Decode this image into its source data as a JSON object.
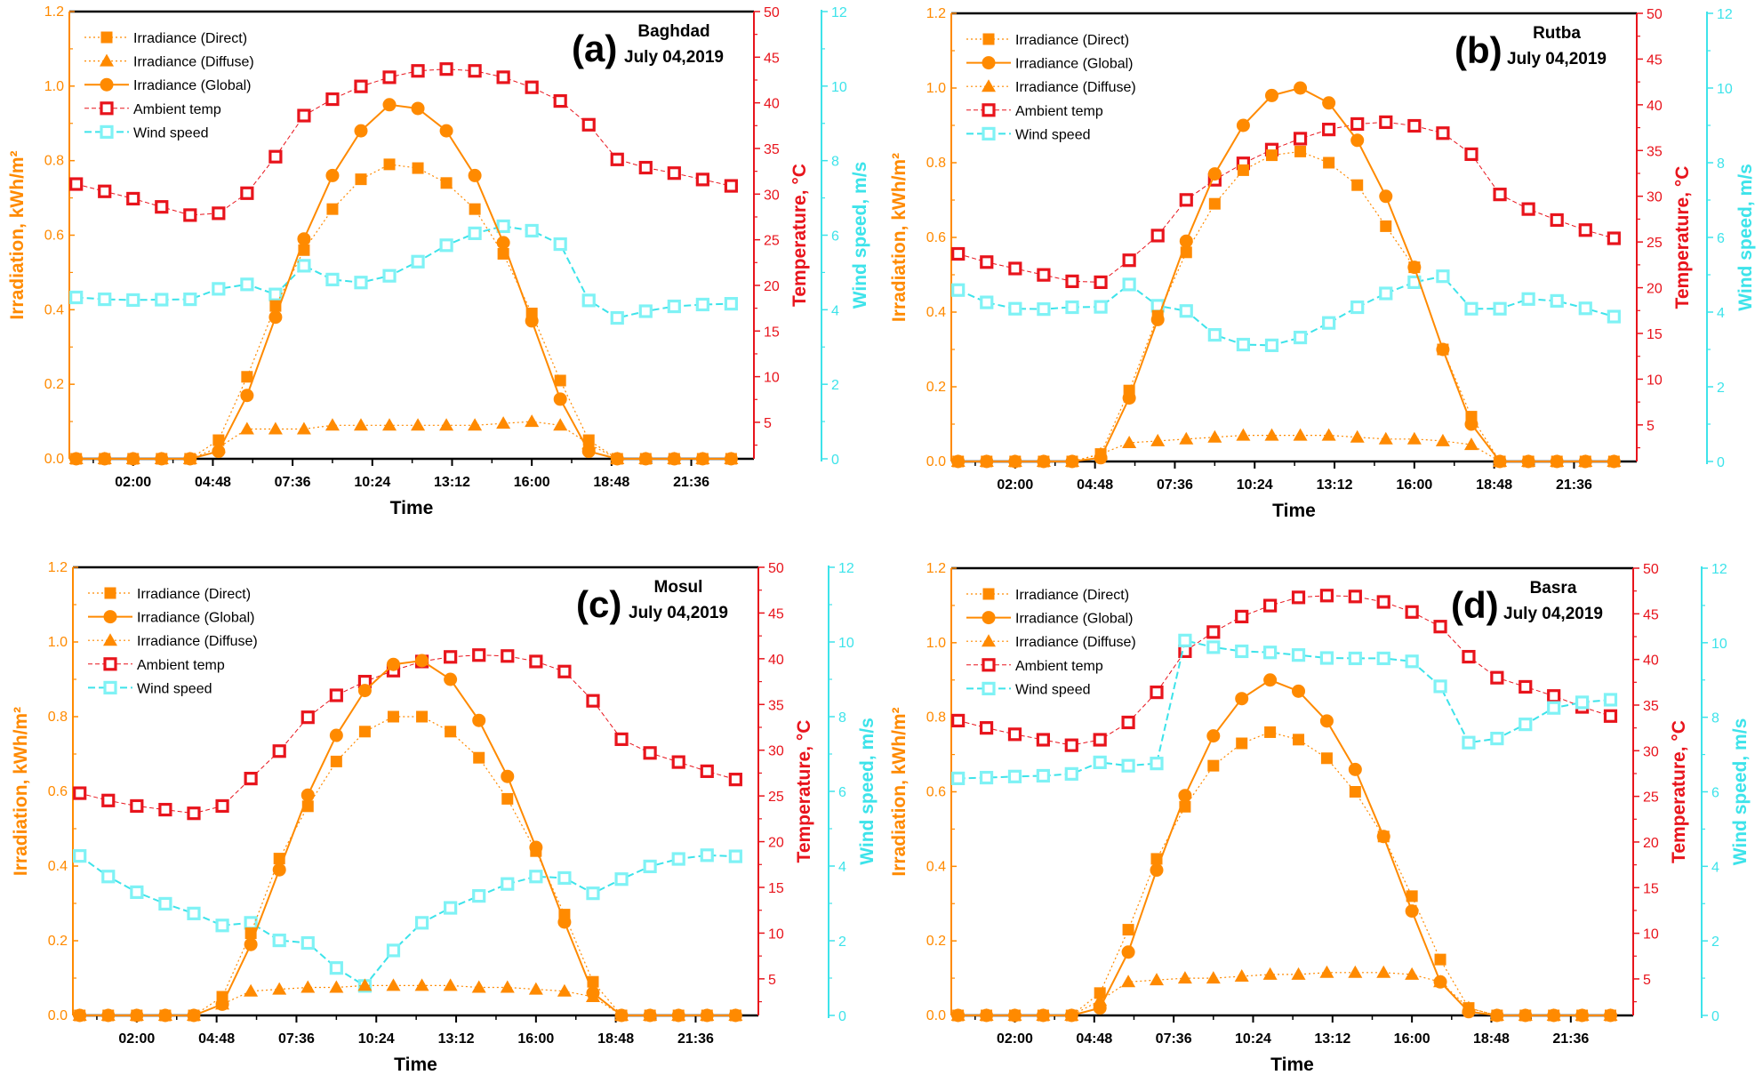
{
  "colors": {
    "irradiance": "#FF8A00",
    "temperature": "#E8141C",
    "wind": "#3DE3EA",
    "wind_marker": "#7FF2F5",
    "frame": "#000000"
  },
  "chart_data": [
    {
      "type": "line",
      "panel_label": "(a)",
      "city": "Baghdad",
      "date": "July 04,2019",
      "xlabel": "Time",
      "ylabel_left": "Irradiation, kWh/m²",
      "ylabel_right": "Temperature, °C",
      "ylabel_right2": "Wind speed, m/s",
      "x": [
        0,
        1,
        2,
        3,
        4,
        5,
        6,
        7,
        8,
        9,
        10,
        11,
        12,
        13,
        14,
        15,
        16,
        17,
        18,
        19,
        20,
        21,
        22,
        23
      ],
      "xlim": [
        -0.24,
        23.8
      ],
      "xticks": [
        {
          "value": 2,
          "label": "02:00"
        },
        {
          "value": 4.8,
          "label": "04:48"
        },
        {
          "value": 7.6,
          "label": "07:36"
        },
        {
          "value": 10.4,
          "label": "10:24"
        },
        {
          "value": 13.2,
          "label": "13:12"
        },
        {
          "value": 16,
          "label": "16:00"
        },
        {
          "value": 18.8,
          "label": "18:48"
        },
        {
          "value": 21.6,
          "label": "21:36"
        }
      ],
      "ylim_left": [
        0,
        1.2
      ],
      "ylim_right": [
        1,
        50
      ],
      "ylim_right2": [
        0,
        12
      ],
      "yticks_left": [
        "0.0",
        "0.2",
        "0.4",
        "0.6",
        "0.8",
        "1.0",
        "1.2"
      ],
      "yticks_right": [
        "5",
        "10",
        "15",
        "20",
        "25",
        "30",
        "35",
        "40",
        "45",
        "50"
      ],
      "yticks_right2": [
        "0",
        "2",
        "4",
        "6",
        "8",
        "10",
        "12"
      ],
      "grid": false,
      "legend_position": "top-left",
      "legend_order": [
        "direct",
        "diffuse",
        "global",
        "ambient",
        "wind"
      ],
      "series": {
        "direct": {
          "name": "Irradiance (Direct)",
          "axis": "left",
          "values": [
            0,
            0,
            0,
            0,
            0,
            0.05,
            0.22,
            0.41,
            0.56,
            0.67,
            0.75,
            0.79,
            0.78,
            0.74,
            0.67,
            0.55,
            0.39,
            0.21,
            0.05,
            0,
            0,
            0,
            0,
            0
          ]
        },
        "diffuse": {
          "name": "Irradiance (Diffuse)",
          "axis": "left",
          "values": [
            0,
            0,
            0,
            0,
            0,
            0.03,
            0.08,
            0.08,
            0.08,
            0.09,
            0.09,
            0.09,
            0.09,
            0.09,
            0.09,
            0.095,
            0.1,
            0.09,
            0.04,
            0,
            0,
            0,
            0,
            0
          ]
        },
        "global": {
          "name": "Irradiance (Global)",
          "axis": "left",
          "values": [
            0,
            0,
            0,
            0,
            0,
            0.02,
            0.17,
            0.38,
            0.59,
            0.76,
            0.88,
            0.95,
            0.94,
            0.88,
            0.76,
            0.58,
            0.37,
            0.16,
            0.02,
            0,
            0,
            0,
            0,
            0
          ]
        },
        "ambient": {
          "name": "Ambient temp",
          "axis": "right",
          "values": [
            31.1,
            30.3,
            29.5,
            28.6,
            27.7,
            27.9,
            30.1,
            34.1,
            38.6,
            40.4,
            41.8,
            42.8,
            43.5,
            43.7,
            43.5,
            42.8,
            41.7,
            40.2,
            37.6,
            33.8,
            32.9,
            32.3,
            31.6,
            30.9
          ]
        },
        "wind": {
          "name": "Wind speed",
          "axis": "right2",
          "values": [
            4.33,
            4.28,
            4.26,
            4.27,
            4.28,
            4.56,
            4.68,
            4.41,
            5.18,
            4.81,
            4.73,
            4.91,
            5.29,
            5.73,
            6.05,
            6.24,
            6.12,
            5.76,
            4.25,
            3.78,
            3.96,
            4.09,
            4.14,
            4.16
          ]
        }
      }
    },
    {
      "type": "line",
      "panel_label": "(b)",
      "city": "Rutba",
      "date": "July 04,2019",
      "xlabel": "Time",
      "ylabel_left": "Irradiation, kWh/m²",
      "ylabel_right": "Temperature, °C",
      "ylabel_right2": "Wind speed, m/s",
      "x": [
        0,
        1,
        2,
        3,
        4,
        5,
        6,
        7,
        8,
        9,
        10,
        11,
        12,
        13,
        14,
        15,
        16,
        17,
        18,
        19,
        20,
        21,
        22,
        23
      ],
      "xlim": [
        -0.24,
        23.8
      ],
      "xticks": [
        {
          "value": 2,
          "label": "02:00"
        },
        {
          "value": 4.8,
          "label": "04:48"
        },
        {
          "value": 7.6,
          "label": "07:36"
        },
        {
          "value": 10.4,
          "label": "10:24"
        },
        {
          "value": 13.2,
          "label": "13:12"
        },
        {
          "value": 16,
          "label": "16:00"
        },
        {
          "value": 18.8,
          "label": "18:48"
        },
        {
          "value": 21.6,
          "label": "21:36"
        }
      ],
      "ylim_left": [
        0,
        1.2
      ],
      "ylim_right": [
        1,
        50
      ],
      "ylim_right2": [
        0,
        12
      ],
      "yticks_left": [
        "0.0",
        "0.2",
        "0.4",
        "0.6",
        "0.8",
        "1.0",
        "1.2"
      ],
      "yticks_right": [
        "5",
        "10",
        "15",
        "20",
        "25",
        "30",
        "35",
        "40",
        "45",
        "50"
      ],
      "yticks_right2": [
        "0",
        "2",
        "4",
        "6",
        "8",
        "10",
        "12"
      ],
      "grid": false,
      "legend_position": "top-left",
      "legend_order": [
        "direct",
        "global",
        "diffuse",
        "ambient",
        "wind"
      ],
      "series": {
        "direct": {
          "name": "Irradiance (Direct)",
          "axis": "left",
          "values": [
            0,
            0,
            0,
            0,
            0,
            0.02,
            0.19,
            0.39,
            0.56,
            0.69,
            0.78,
            0.82,
            0.83,
            0.8,
            0.74,
            0.63,
            0.52,
            0.3,
            0.12,
            0,
            0,
            0,
            0,
            0
          ]
        },
        "global": {
          "name": "Irradiance (Global)",
          "axis": "left",
          "values": [
            0,
            0,
            0,
            0,
            0,
            0.01,
            0.17,
            0.38,
            0.59,
            0.77,
            0.9,
            0.98,
            1.0,
            0.96,
            0.86,
            0.71,
            0.52,
            0.3,
            0.1,
            0,
            0,
            0,
            0,
            0
          ]
        },
        "diffuse": {
          "name": "Irradiance (Diffuse)",
          "axis": "left",
          "values": [
            0,
            0,
            0,
            0,
            0,
            0.02,
            0.05,
            0.055,
            0.06,
            0.065,
            0.07,
            0.07,
            0.07,
            0.07,
            0.065,
            0.06,
            0.06,
            0.055,
            0.045,
            0,
            0,
            0,
            0,
            0
          ]
        },
        "ambient": {
          "name": "Ambient temp",
          "axis": "right",
          "values": [
            23.7,
            22.8,
            22.1,
            21.4,
            20.7,
            20.6,
            23.0,
            25.7,
            29.6,
            31.8,
            33.6,
            35.1,
            36.3,
            37.3,
            37.9,
            38.1,
            37.7,
            36.9,
            34.6,
            30.2,
            28.6,
            27.4,
            26.3,
            25.4
          ]
        },
        "wind": {
          "name": "Wind speed",
          "axis": "right2",
          "values": [
            4.59,
            4.26,
            4.09,
            4.08,
            4.13,
            4.14,
            4.74,
            4.17,
            4.03,
            3.39,
            3.13,
            3.11,
            3.32,
            3.71,
            4.13,
            4.5,
            4.8,
            4.96,
            4.09,
            4.09,
            4.35,
            4.3,
            4.1,
            3.88
          ]
        }
      }
    },
    {
      "type": "line",
      "panel_label": "(c)",
      "city": "Mosul",
      "date": "July 04,2019",
      "xlabel": "Time",
      "ylabel_left": "Irradiation, kWh/m²",
      "ylabel_right": "Temperature, °C",
      "ylabel_right2": "Wind speed, m/s",
      "x": [
        0,
        1,
        2,
        3,
        4,
        5,
        6,
        7,
        8,
        9,
        10,
        11,
        12,
        13,
        14,
        15,
        16,
        17,
        18,
        19,
        20,
        21,
        22,
        23
      ],
      "xlim": [
        -0.24,
        23.8
      ],
      "xticks": [
        {
          "value": 2,
          "label": "02:00"
        },
        {
          "value": 4.8,
          "label": "04:48"
        },
        {
          "value": 7.6,
          "label": "07:36"
        },
        {
          "value": 10.4,
          "label": "10:24"
        },
        {
          "value": 13.2,
          "label": "13:12"
        },
        {
          "value": 16,
          "label": "16:00"
        },
        {
          "value": 18.8,
          "label": "18:48"
        },
        {
          "value": 21.6,
          "label": "21:36"
        }
      ],
      "ylim_left": [
        0,
        1.2
      ],
      "ylim_right": [
        1,
        50
      ],
      "ylim_right2": [
        0,
        12
      ],
      "yticks_left": [
        "0.0",
        "0.2",
        "0.4",
        "0.6",
        "0.8",
        "1.0",
        "1.2"
      ],
      "yticks_right": [
        "5",
        "10",
        "15",
        "20",
        "25",
        "30",
        "35",
        "40",
        "45",
        "50"
      ],
      "yticks_right2": [
        "0",
        "2",
        "4",
        "6",
        "8",
        "10",
        "12"
      ],
      "grid": false,
      "legend_position": "top-left",
      "legend_order": [
        "direct",
        "global",
        "diffuse",
        "ambient",
        "wind"
      ],
      "series": {
        "direct": {
          "name": "Irradiance (Direct)",
          "axis": "left",
          "values": [
            0,
            0,
            0,
            0,
            0,
            0.05,
            0.22,
            0.42,
            0.56,
            0.68,
            0.76,
            0.8,
            0.8,
            0.76,
            0.69,
            0.58,
            0.44,
            0.27,
            0.09,
            0,
            0,
            0,
            0,
            0
          ]
        },
        "global": {
          "name": "Irradiance (Global)",
          "axis": "left",
          "values": [
            0,
            0,
            0,
            0,
            0,
            0.03,
            0.19,
            0.39,
            0.59,
            0.75,
            0.87,
            0.94,
            0.95,
            0.9,
            0.79,
            0.64,
            0.45,
            0.25,
            0.06,
            0,
            0,
            0,
            0,
            0
          ]
        },
        "diffuse": {
          "name": "Irradiance (Diffuse)",
          "axis": "left",
          "values": [
            0,
            0,
            0,
            0,
            0,
            0.03,
            0.065,
            0.07,
            0.075,
            0.075,
            0.08,
            0.08,
            0.08,
            0.08,
            0.075,
            0.075,
            0.07,
            0.065,
            0.05,
            0,
            0,
            0,
            0,
            0
          ]
        },
        "ambient": {
          "name": "Ambient temp",
          "axis": "right",
          "values": [
            25.3,
            24.5,
            23.9,
            23.5,
            23.1,
            23.9,
            26.9,
            29.9,
            33.6,
            36.0,
            37.5,
            38.7,
            39.7,
            40.2,
            40.4,
            40.3,
            39.7,
            38.6,
            35.4,
            31.2,
            29.7,
            28.7,
            27.7,
            26.8
          ]
        },
        "wind": {
          "name": "Wind speed",
          "axis": "right2",
          "values": [
            4.27,
            3.72,
            3.3,
            2.99,
            2.73,
            2.41,
            2.48,
            2.01,
            1.94,
            1.27,
            0.79,
            1.74,
            2.48,
            2.88,
            3.2,
            3.52,
            3.72,
            3.68,
            3.27,
            3.65,
            3.99,
            4.19,
            4.29,
            4.26
          ]
        }
      }
    },
    {
      "type": "line",
      "panel_label": "(d)",
      "city": "Basra",
      "date": "July 04,2019",
      "xlabel": "Time",
      "ylabel_left": "Irradiation, kWh/m²",
      "ylabel_right": "Temperature, °C",
      "ylabel_right2": "Wind speed, m/s",
      "x": [
        0,
        1,
        2,
        3,
        4,
        5,
        6,
        7,
        8,
        9,
        10,
        11,
        12,
        13,
        14,
        15,
        16,
        17,
        18,
        19,
        20,
        21,
        22,
        23
      ],
      "xlim": [
        -0.24,
        23.8
      ],
      "xticks": [
        {
          "value": 2,
          "label": "02:00"
        },
        {
          "value": 4.8,
          "label": "04:48"
        },
        {
          "value": 7.6,
          "label": "07:36"
        },
        {
          "value": 10.4,
          "label": "10:24"
        },
        {
          "value": 13.2,
          "label": "13:12"
        },
        {
          "value": 16,
          "label": "16:00"
        },
        {
          "value": 18.8,
          "label": "18:48"
        },
        {
          "value": 21.6,
          "label": "21:36"
        }
      ],
      "ylim_left": [
        0,
        1.2
      ],
      "ylim_right": [
        1,
        50
      ],
      "ylim_right2": [
        0,
        12
      ],
      "yticks_left": [
        "0.0",
        "0.2",
        "0.4",
        "0.6",
        "0.8",
        "1.0",
        "1.2"
      ],
      "yticks_right": [
        "5",
        "10",
        "15",
        "20",
        "25",
        "30",
        "35",
        "40",
        "45",
        "50"
      ],
      "yticks_right2": [
        "0",
        "2",
        "4",
        "6",
        "8",
        "10",
        "12"
      ],
      "grid": false,
      "legend_position": "top-left",
      "legend_order": [
        "direct",
        "global",
        "diffuse",
        "ambient",
        "wind"
      ],
      "series": {
        "direct": {
          "name": "Irradiance (Direct)",
          "axis": "left",
          "values": [
            0,
            0,
            0,
            0,
            0,
            0.06,
            0.23,
            0.42,
            0.56,
            0.67,
            0.73,
            0.76,
            0.74,
            0.69,
            0.6,
            0.48,
            0.32,
            0.15,
            0.02,
            0,
            0,
            0,
            0,
            0
          ]
        },
        "global": {
          "name": "Irradiance (Global)",
          "axis": "left",
          "values": [
            0,
            0,
            0,
            0,
            0,
            0.02,
            0.17,
            0.39,
            0.59,
            0.75,
            0.85,
            0.9,
            0.87,
            0.79,
            0.66,
            0.48,
            0.28,
            0.09,
            0.01,
            0,
            0,
            0,
            0,
            0
          ]
        },
        "diffuse": {
          "name": "Irradiance (Diffuse)",
          "axis": "left",
          "values": [
            0,
            0,
            0,
            0,
            0,
            0.04,
            0.09,
            0.095,
            0.1,
            0.1,
            0.105,
            0.11,
            0.11,
            0.115,
            0.115,
            0.115,
            0.11,
            0.09,
            0.02,
            0,
            0,
            0,
            0,
            0
          ]
        },
        "ambient": {
          "name": "Ambient temp",
          "axis": "right",
          "values": [
            33.3,
            32.5,
            31.8,
            31.2,
            30.6,
            31.2,
            33.1,
            36.4,
            40.9,
            43.0,
            44.7,
            45.9,
            46.8,
            47.0,
            46.9,
            46.3,
            45.2,
            43.6,
            40.3,
            38.0,
            37.0,
            36.0,
            34.8,
            33.8
          ]
        },
        "wind": {
          "name": "Wind speed",
          "axis": "right2",
          "values": [
            6.36,
            6.38,
            6.41,
            6.43,
            6.48,
            6.79,
            6.7,
            6.76,
            10.06,
            9.88,
            9.77,
            9.74,
            9.67,
            9.59,
            9.58,
            9.58,
            9.5,
            8.83,
            7.32,
            7.43,
            7.81,
            8.25,
            8.4,
            8.47
          ]
        }
      }
    }
  ]
}
